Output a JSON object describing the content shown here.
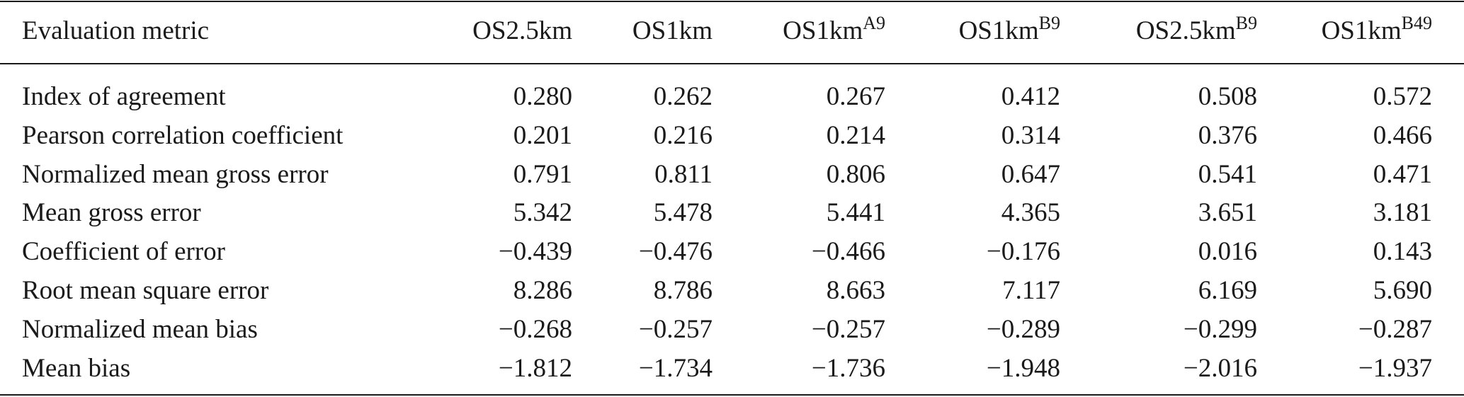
{
  "table": {
    "header": {
      "metric_label": "Evaluation metric",
      "columns": [
        {
          "base": "OS2.5km",
          "sup": ""
        },
        {
          "base": "OS1km",
          "sup": ""
        },
        {
          "base": "OS1km",
          "sup": "A9"
        },
        {
          "base": "OS1km",
          "sup": "B9"
        },
        {
          "base": "OS2.5km",
          "sup": "B9"
        },
        {
          "base": "OS1km",
          "sup": "B49"
        }
      ]
    },
    "rows": [
      {
        "metric": "Index of agreement",
        "values": [
          "0.280",
          "0.262",
          "0.267",
          "0.412",
          "0.508",
          "0.572"
        ]
      },
      {
        "metric": "Pearson correlation coefficient",
        "values": [
          "0.201",
          "0.216",
          "0.214",
          "0.314",
          "0.376",
          "0.466"
        ]
      },
      {
        "metric": "Normalized mean gross error",
        "values": [
          "0.791",
          "0.811",
          "0.806",
          "0.647",
          "0.541",
          "0.471"
        ]
      },
      {
        "metric": "Mean gross error",
        "values": [
          "5.342",
          "5.478",
          "5.441",
          "4.365",
          "3.651",
          "3.181"
        ]
      },
      {
        "metric": "Coefficient of error",
        "values": [
          "−0.439",
          "−0.476",
          "−0.466",
          "−0.176",
          "0.016",
          "0.143"
        ]
      },
      {
        "metric": "Root mean square error",
        "values": [
          "8.286",
          "8.786",
          "8.663",
          "7.117",
          "6.169",
          "5.690"
        ]
      },
      {
        "metric": "Normalized mean bias",
        "values": [
          "−0.268",
          "−0.257",
          "−0.257",
          "−0.289",
          "−0.299",
          "−0.287"
        ]
      },
      {
        "metric": "Mean bias",
        "values": [
          "−1.812",
          "−1.734",
          "−1.736",
          "−1.948",
          "−2.016",
          "−1.937"
        ]
      }
    ]
  }
}
